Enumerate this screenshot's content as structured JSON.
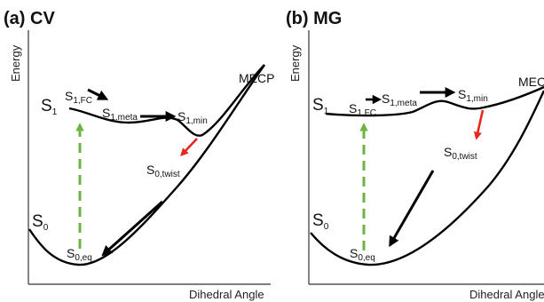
{
  "panels": [
    {
      "title": "(a) CV",
      "ylabel": "Energy",
      "xlabel": "Dihedral Angle",
      "labels": {
        "s1": {
          "base": "S",
          "sub": "1"
        },
        "s0": {
          "base": "S",
          "sub": "0"
        },
        "s1_fc": {
          "base": "S",
          "sub": "1,FC"
        },
        "s1_meta": {
          "base": "S",
          "sub": "1,meta"
        },
        "s1_min": {
          "base": "S",
          "sub": "1,min"
        },
        "s0_twist": {
          "base": "S",
          "sub": "0,twist"
        },
        "s0_eq": {
          "base": "S",
          "sub": "0,eq"
        },
        "mecp": "MECP"
      }
    },
    {
      "title": "(b) MG",
      "ylabel": "Energy",
      "xlabel": "Dihedral Angle",
      "labels": {
        "s1": {
          "base": "S",
          "sub": "1"
        },
        "s0": {
          "base": "S",
          "sub": "0"
        },
        "s1_fc": {
          "base": "S",
          "sub": "1,FC"
        },
        "s1_meta": {
          "base": "S",
          "sub": "1,meta"
        },
        "s1_min": {
          "base": "S",
          "sub": "1,min"
        },
        "s0_twist": {
          "base": "S",
          "sub": "0,twist"
        },
        "s0_eq": {
          "base": "S",
          "sub": "0,eq"
        },
        "mecp": "MECP"
      }
    }
  ],
  "colors": {
    "curve": "#000000",
    "excitation_arrow": "#6db33f",
    "decay_arrow": "#e8261c",
    "path_arrow": "#000000"
  }
}
